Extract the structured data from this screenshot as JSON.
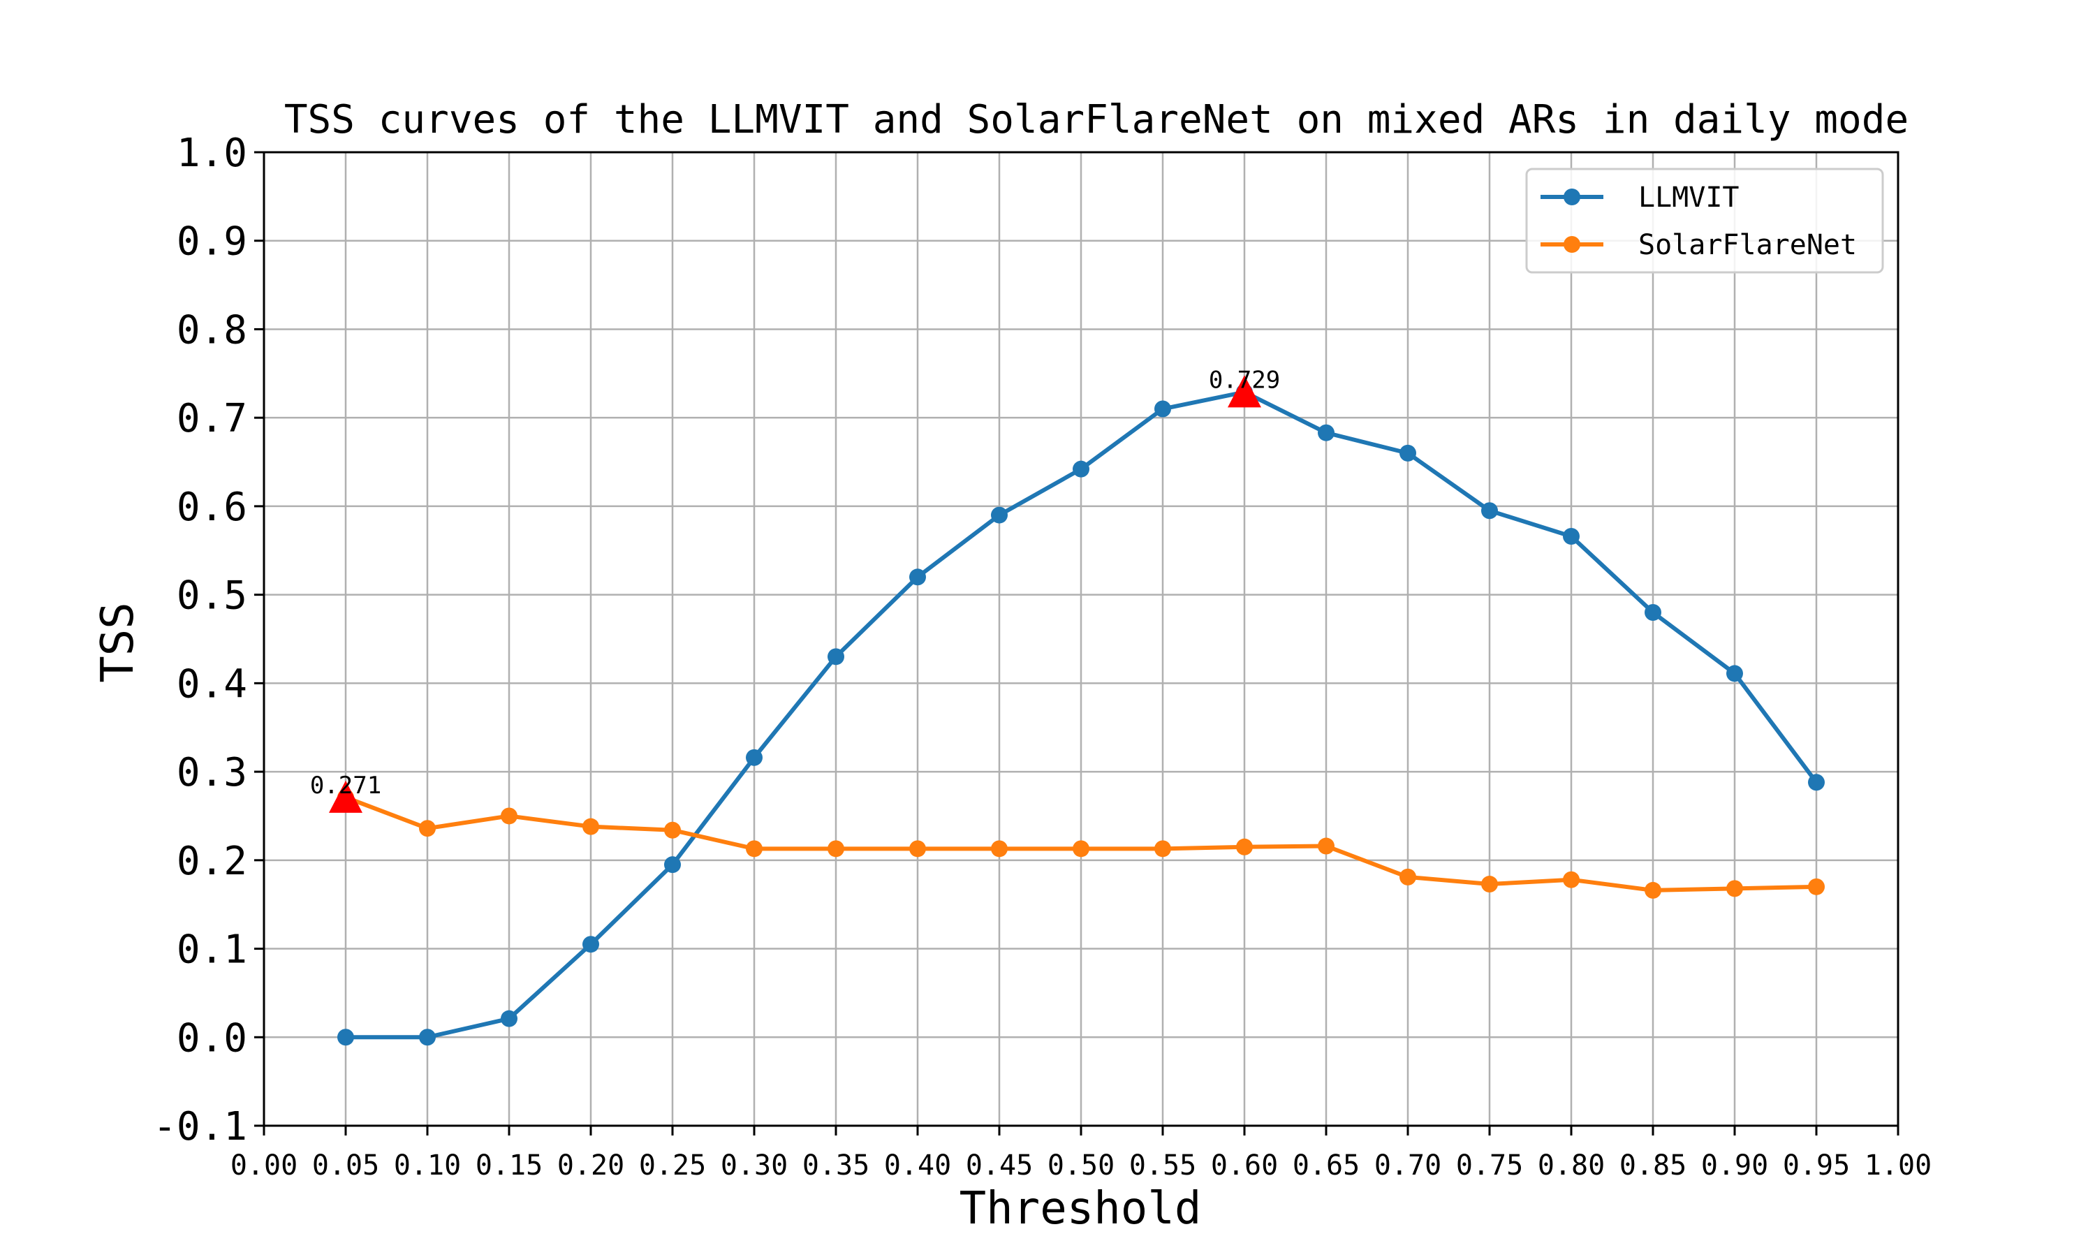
{
  "chart_data": {
    "type": "line",
    "title": "TSS curves of the LLMVIT and SolarFlareNet on mixed ARs in daily mode",
    "xlabel": "Threshold",
    "ylabel": "TSS",
    "xlim": [
      0.0,
      1.0
    ],
    "ylim": [
      -0.1,
      1.0
    ],
    "xticks": [
      "0.00",
      "0.05",
      "0.10",
      "0.15",
      "0.20",
      "0.25",
      "0.30",
      "0.35",
      "0.40",
      "0.45",
      "0.50",
      "0.55",
      "0.60",
      "0.65",
      "0.70",
      "0.75",
      "0.80",
      "0.85",
      "0.90",
      "0.95",
      "1.00"
    ],
    "xtick_values": [
      0.0,
      0.05,
      0.1,
      0.15,
      0.2,
      0.25,
      0.3,
      0.35,
      0.4,
      0.45,
      0.5,
      0.55,
      0.6,
      0.65,
      0.7,
      0.75,
      0.8,
      0.85,
      0.9,
      0.95,
      1.0
    ],
    "yticks": [
      "-0.1",
      "0.0",
      "0.1",
      "0.2",
      "0.3",
      "0.4",
      "0.5",
      "0.6",
      "0.7",
      "0.8",
      "0.9",
      "1.0"
    ],
    "ytick_values": [
      -0.1,
      0.0,
      0.1,
      0.2,
      0.3,
      0.4,
      0.5,
      0.6,
      0.7,
      0.8,
      0.9,
      1.0
    ],
    "grid": true,
    "legend_position": "top-right",
    "x": [
      0.05,
      0.1,
      0.15,
      0.2,
      0.25,
      0.3,
      0.35,
      0.4,
      0.45,
      0.5,
      0.55,
      0.6,
      0.65,
      0.7,
      0.75,
      0.8,
      0.85,
      0.9,
      0.95
    ],
    "series": [
      {
        "name": "LLMVIT",
        "color": "#1f77b4",
        "values": [
          0.0,
          0.0,
          0.021,
          0.105,
          0.195,
          0.316,
          0.43,
          0.52,
          0.59,
          0.642,
          0.71,
          0.729,
          0.683,
          0.66,
          0.595,
          0.566,
          0.48,
          0.411,
          0.288
        ]
      },
      {
        "name": "SolarFlareNet",
        "color": "#ff7f0e",
        "values": [
          0.271,
          0.236,
          0.25,
          0.238,
          0.234,
          0.213,
          0.213,
          0.213,
          0.213,
          0.213,
          0.213,
          0.215,
          0.216,
          0.181,
          0.173,
          0.178,
          0.166,
          0.168,
          0.17
        ]
      }
    ],
    "annotations": [
      {
        "x": 0.6,
        "y": 0.729,
        "label": "0.729",
        "marker": "triangle",
        "color": "#ff0000"
      },
      {
        "x": 0.05,
        "y": 0.271,
        "label": "0.271",
        "marker": "triangle",
        "color": "#ff0000"
      }
    ]
  }
}
